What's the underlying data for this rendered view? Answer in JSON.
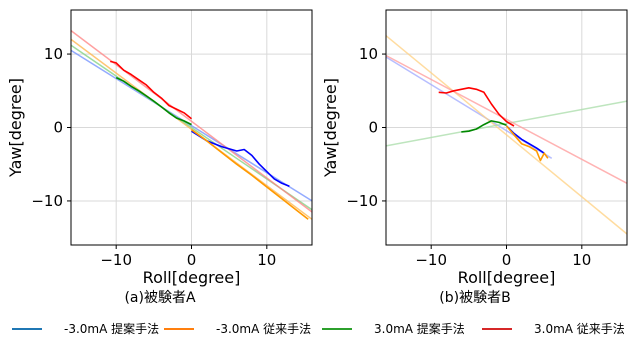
{
  "captions": [
    "(a)被験者A",
    "(b)被験者B"
  ],
  "legend": [
    {
      "label": "-3.0mA 提案手法",
      "color": "#1f77b4"
    },
    {
      "label": "-3.0mA 従来手法",
      "color": "#ff7f0e"
    },
    {
      "label": "3.0mA 提案手法",
      "color": "#2ca02c"
    },
    {
      "label": "3.0mA 従来手法",
      "color": "#d62728"
    }
  ],
  "chart_data": [
    {
      "type": "line",
      "xlabel": "Roll[degree]",
      "ylabel": "Yaw[degree]",
      "xlim": [
        -16,
        16
      ],
      "ylim": [
        -16,
        16
      ],
      "xticks": [
        -10,
        0,
        10
      ],
      "yticks": [
        -10,
        0,
        10
      ],
      "grid": true,
      "series": [
        {
          "name": "-3.0mA 提案手法",
          "color": "#0000ff",
          "kind": "data",
          "x": [
            0,
            2,
            4,
            6,
            7,
            8,
            9,
            10,
            11,
            12,
            13
          ],
          "y": [
            -0.5,
            -1.8,
            -2.6,
            -3.2,
            -3.0,
            -3.8,
            -5.0,
            -6.0,
            -7.0,
            -7.6,
            -8.0
          ]
        },
        {
          "name": "-3.0mA 従来手法",
          "color": "#ff9900",
          "kind": "data",
          "x": [
            0,
            2,
            4,
            6,
            8,
            10,
            12,
            14,
            15.5
          ],
          "y": [
            -0.3,
            -1.8,
            -3.4,
            -5.0,
            -6.5,
            -8.1,
            -9.7,
            -11.3,
            -12.5
          ]
        },
        {
          "name": "3.0mA 提案手法",
          "color": "#008800",
          "kind": "data",
          "x": [
            0,
            -1,
            -2,
            -3,
            -4,
            -5,
            -6,
            -7,
            -8,
            -9,
            -10
          ],
          "y": [
            0.4,
            0.9,
            1.3,
            2.0,
            2.8,
            3.6,
            4.3,
            5.0,
            5.6,
            6.3,
            6.8
          ]
        },
        {
          "name": "3.0mA 従来手法",
          "color": "#ff0000",
          "kind": "data",
          "x": [
            0,
            -1,
            -2,
            -3,
            -4,
            -5,
            -6,
            -7,
            -8,
            -9,
            -10,
            -10.8
          ],
          "y": [
            1.2,
            2.0,
            2.5,
            3.0,
            4.0,
            4.8,
            5.8,
            6.5,
            7.2,
            7.8,
            8.8,
            9.0
          ]
        },
        {
          "name": "-3.0mA 提案手法",
          "color": "#6f8fff",
          "kind": "fit",
          "x": [
            -16,
            16
          ],
          "y": [
            10.5,
            -10.0
          ]
        },
        {
          "name": "-3.0mA 従来手法",
          "color": "#ffb347",
          "kind": "fit",
          "x": [
            -16,
            16
          ],
          "y": [
            12.0,
            -12.5
          ]
        },
        {
          "name": "3.0mA 提案手法",
          "color": "#7fd07f",
          "kind": "fit",
          "x": [
            -16,
            16
          ],
          "y": [
            11.2,
            -11.2
          ]
        },
        {
          "name": "3.0mA 従来手法",
          "color": "#ff8080",
          "kind": "fit",
          "x": [
            -16,
            16
          ],
          "y": [
            13.2,
            -11.5
          ]
        }
      ]
    },
    {
      "type": "line",
      "xlabel": "Roll[degree]",
      "ylabel": "Yaw[degree]",
      "xlim": [
        -16,
        16
      ],
      "ylim": [
        -16,
        16
      ],
      "xticks": [
        -10,
        0,
        10
      ],
      "yticks": [
        -10,
        0,
        10
      ],
      "grid": true,
      "series": [
        {
          "name": "-3.0mA 提案手法",
          "color": "#0000ff",
          "kind": "data",
          "x": [
            0,
            1,
            2,
            3,
            4,
            5
          ],
          "y": [
            0.2,
            -0.8,
            -1.6,
            -2.2,
            -2.8,
            -3.5
          ]
        },
        {
          "name": "-3.0mA 従来手法",
          "color": "#ff9900",
          "kind": "data",
          "x": [
            0,
            1,
            2,
            3,
            4,
            4.5,
            5,
            5.5
          ],
          "y": [
            0.2,
            -1.0,
            -2.2,
            -2.6,
            -3.2,
            -4.5,
            -3.5,
            -4.2
          ]
        },
        {
          "name": "3.0mA 提案手法",
          "color": "#008800",
          "kind": "data",
          "x": [
            -6,
            -5,
            -4,
            -3,
            -2,
            -1,
            0
          ],
          "y": [
            -0.6,
            -0.5,
            -0.2,
            0.4,
            0.9,
            0.7,
            0.3
          ]
        },
        {
          "name": "3.0mA 従来手法",
          "color": "#ff0000",
          "kind": "data",
          "x": [
            -9,
            -8,
            -7,
            -6,
            -5,
            -4,
            -3,
            -2,
            -1,
            0,
            1
          ],
          "y": [
            4.8,
            4.7,
            5.0,
            5.2,
            5.4,
            5.2,
            4.8,
            3.2,
            1.8,
            0.8,
            0.2
          ]
        },
        {
          "name": "-3.0mA 提案手法",
          "color": "#9fa8ff",
          "kind": "fit",
          "x": [
            -16,
            6
          ],
          "y": [
            9.6,
            -4.2
          ]
        },
        {
          "name": "-3.0mA 従来手法",
          "color": "#ffd080",
          "kind": "fit",
          "x": [
            -16,
            16
          ],
          "y": [
            12.5,
            -14.5
          ]
        },
        {
          "name": "3.0mA 提案手法",
          "color": "#a8dca8",
          "kind": "fit",
          "x": [
            -16,
            16
          ],
          "y": [
            -2.5,
            3.6
          ]
        },
        {
          "name": "3.0mA 従来手法",
          "color": "#ff9999",
          "kind": "fit",
          "x": [
            -16,
            16
          ],
          "y": [
            9.8,
            -7.6
          ]
        }
      ]
    }
  ]
}
